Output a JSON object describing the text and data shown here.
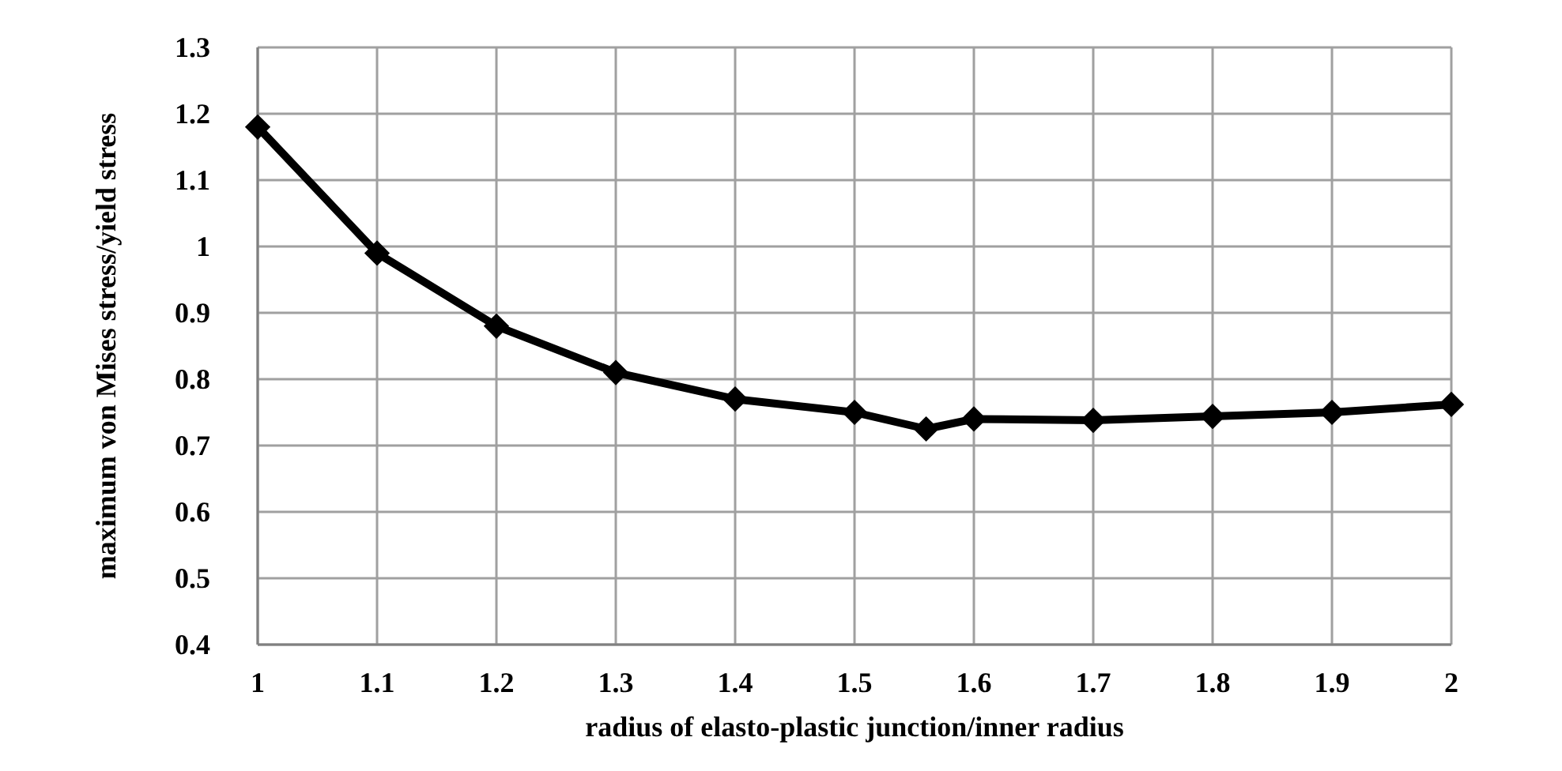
{
  "chart_data": {
    "type": "line",
    "xlabel": "radius of elasto-plastic junction/inner radius",
    "ylabel": "maximum von Mises stress/yield stress",
    "x": [
      1,
      1.1,
      1.2,
      1.3,
      1.4,
      1.5,
      1.56,
      1.6,
      1.7,
      1.8,
      1.9,
      2
    ],
    "series": [
      {
        "color": "#000000",
        "values": [
          1.18,
          0.99,
          0.88,
          0.81,
          0.77,
          0.75,
          0.725,
          0.74,
          0.738,
          0.744,
          0.75,
          0.762
        ]
      }
    ],
    "xlim": [
      1,
      2
    ],
    "xticks": [
      1,
      1.1,
      1.2,
      1.3,
      1.4,
      1.5,
      1.6,
      1.7,
      1.8,
      1.9,
      2
    ],
    "ylim": [
      0.4,
      1.3
    ],
    "yticks": [
      {
        "value": 0.4,
        "label": "0.4"
      },
      {
        "value": 0.5,
        "label": "0.5"
      },
      {
        "value": 0.6,
        "label": "0.6"
      },
      {
        "value": 0.7,
        "label": "0.7"
      },
      {
        "value": 0.8,
        "label": "0.8"
      },
      {
        "value": 0.9,
        "label": "0.9"
      },
      1,
      {
        "value": 1.1,
        "label": "1.1"
      },
      {
        "value": 1.2,
        "label": "1.2"
      },
      {
        "value": 1.3,
        "label": "1.3"
      }
    ],
    "grid": true,
    "marker": "diamond",
    "line_style": "solid"
  }
}
